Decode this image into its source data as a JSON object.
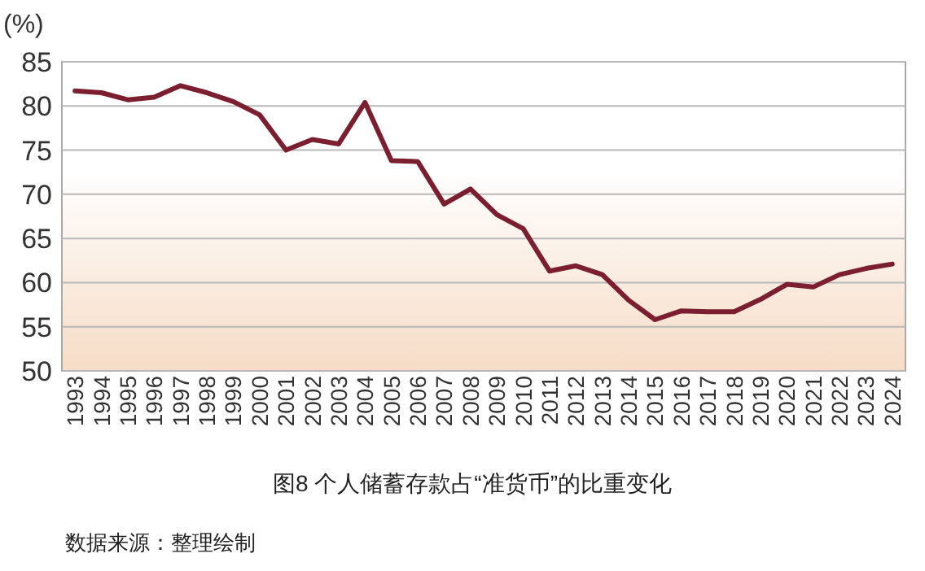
{
  "chart_data": {
    "type": "line",
    "title": "图8  个人储蓄存款占“准货币”的比重变化",
    "ylabel": "(%)",
    "categories": [
      "1993",
      "1994",
      "1995",
      "1996",
      "1997",
      "1998",
      "1999",
      "2000",
      "2001",
      "2002",
      "2003",
      "2004",
      "2005",
      "2006",
      "2007",
      "2008",
      "2009",
      "2010",
      "2011",
      "2012",
      "2013",
      "2014",
      "2015",
      "2016",
      "2017",
      "2018",
      "2019",
      "2020",
      "2021",
      "2022",
      "2023",
      "2024"
    ],
    "series": [
      {
        "color": "#7b1f30",
        "values": [
          81.7,
          81.5,
          80.7,
          81.0,
          82.3,
          81.5,
          80.5,
          79.0,
          75.0,
          76.2,
          75.7,
          80.4,
          73.8,
          73.7,
          68.9,
          70.6,
          67.7,
          66.1,
          61.3,
          61.9,
          60.9,
          58.0,
          55.8,
          56.8,
          56.7,
          56.7,
          58.1,
          59.8,
          59.5,
          60.9,
          61.6,
          62.1
        ]
      }
    ],
    "ylim": [
      50,
      85
    ],
    "yticks": [
      50,
      55,
      60,
      65,
      70,
      75,
      80,
      85
    ],
    "grid": "y",
    "annotations": [
      "数据来源：整理绘制"
    ]
  }
}
